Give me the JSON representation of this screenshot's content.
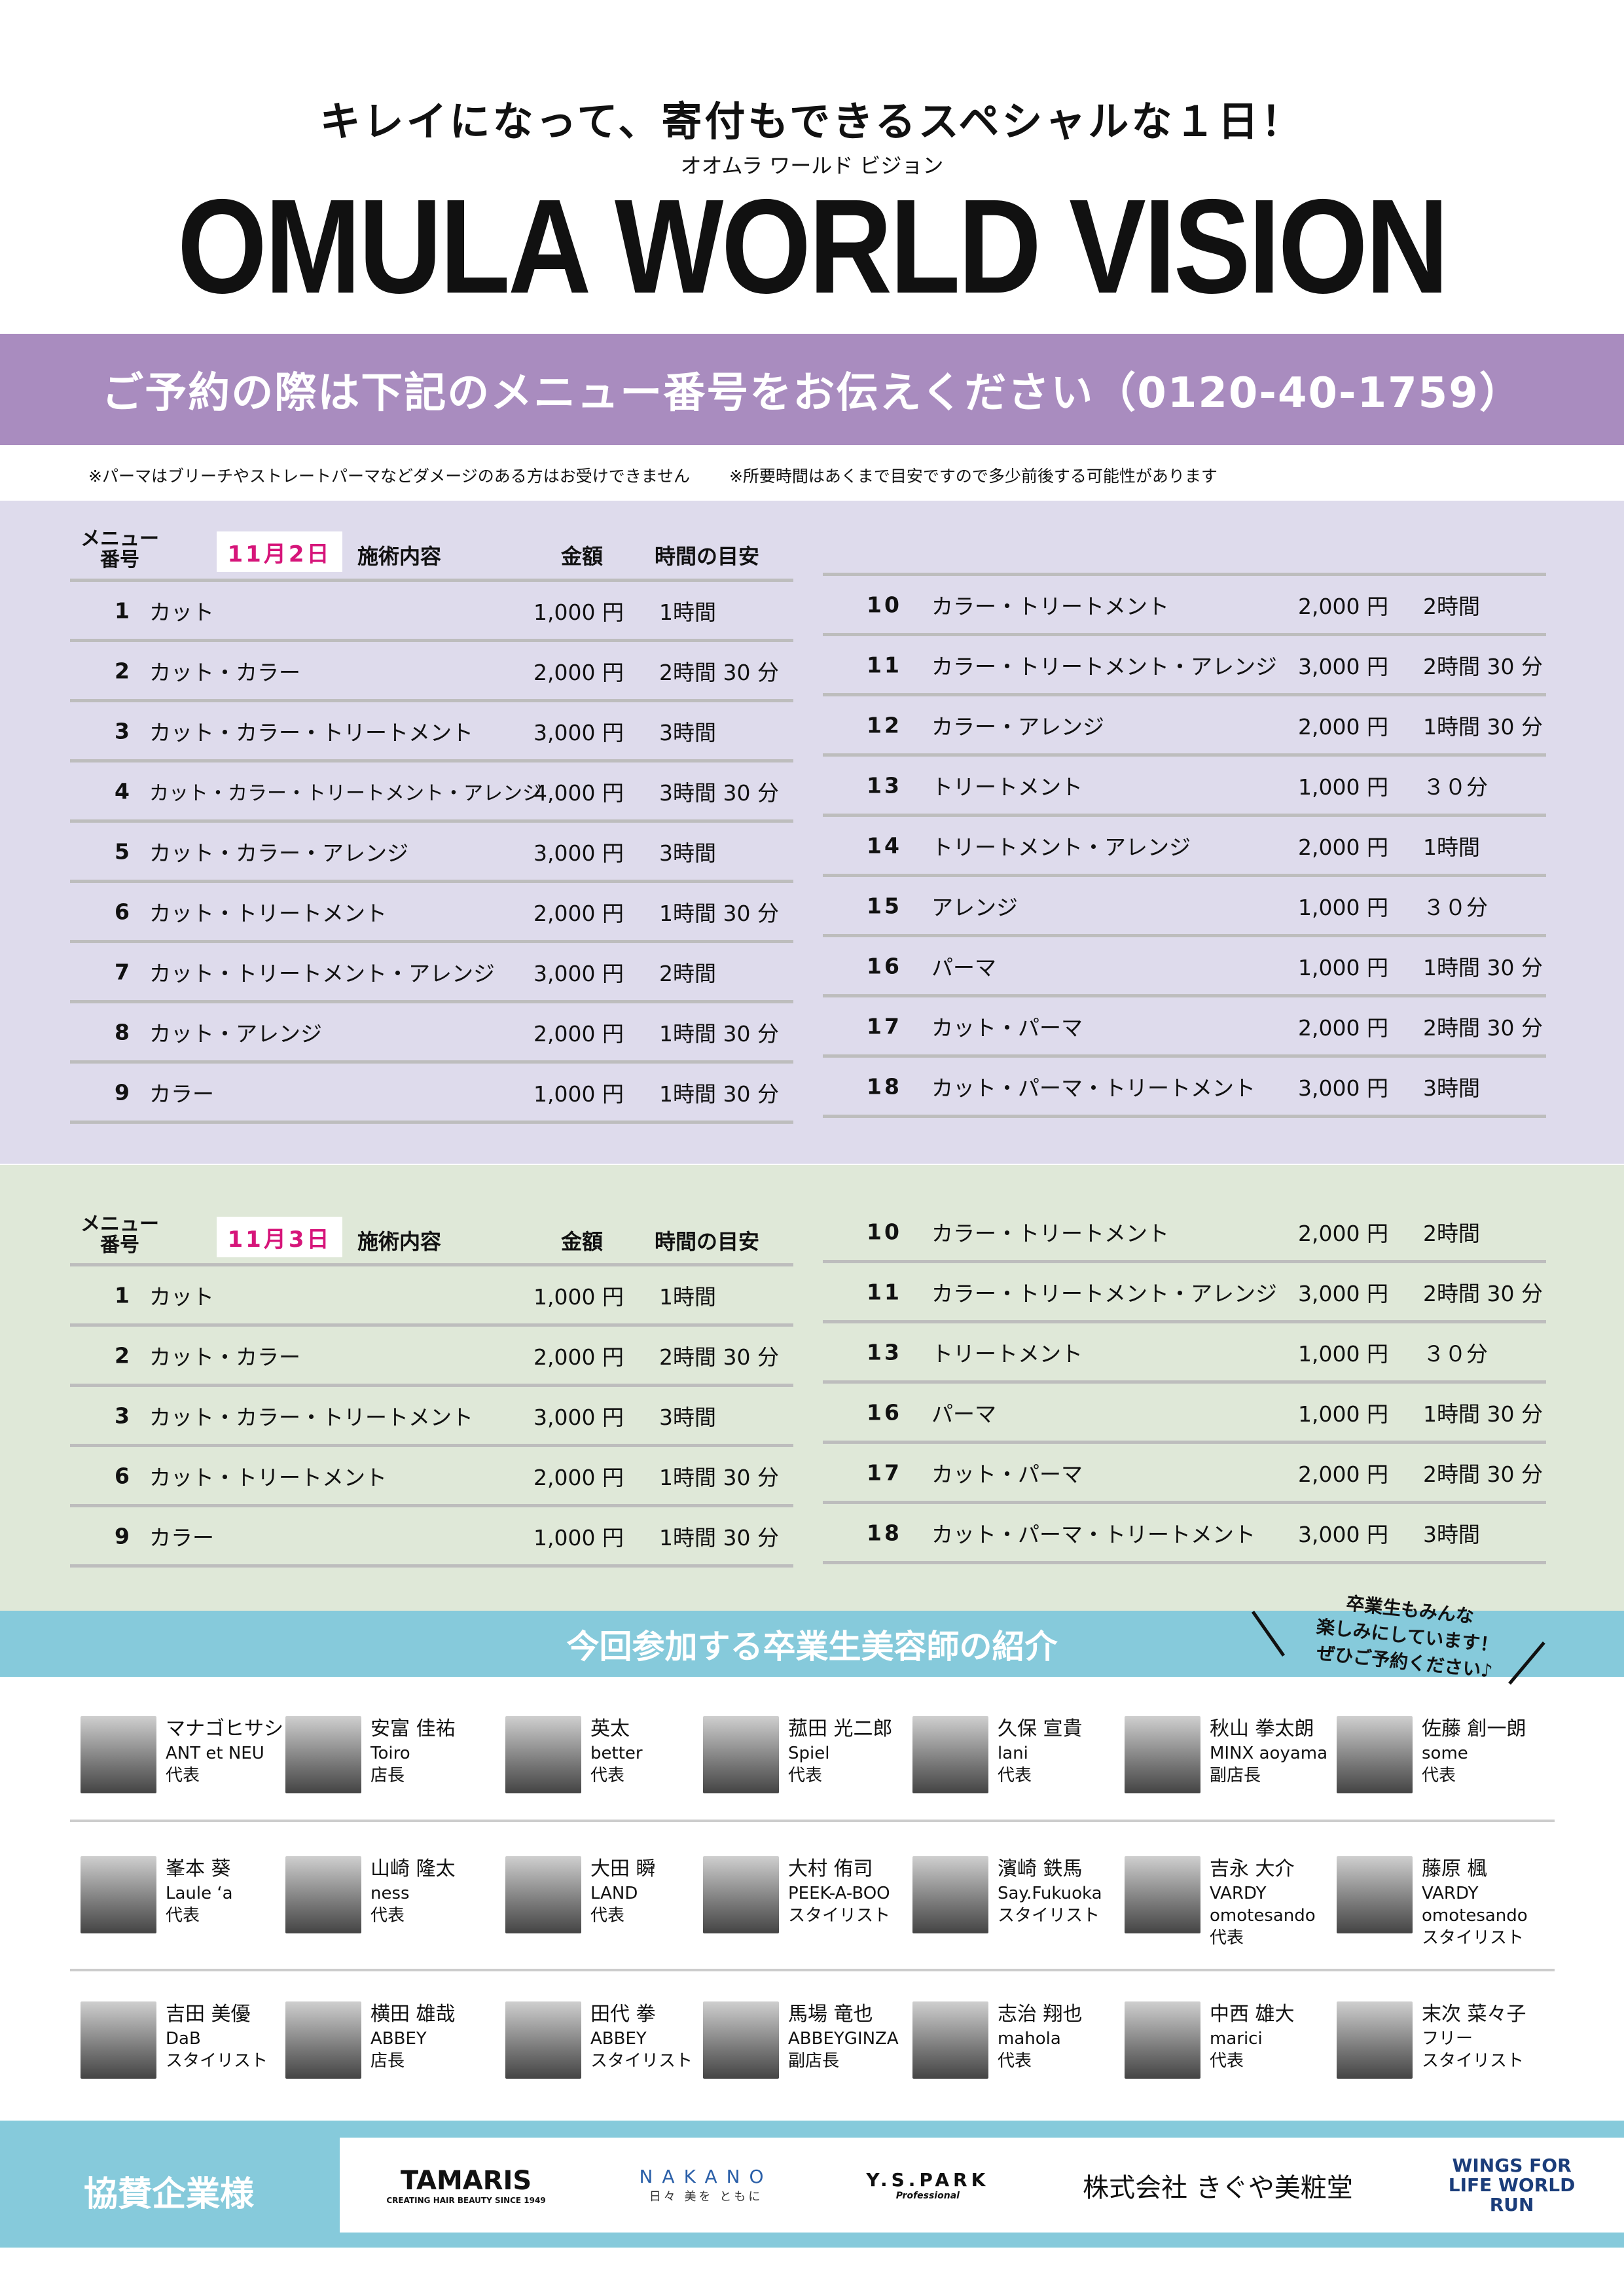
{
  "header": {
    "headline": "キレイになって、寄付もできるスペシャルな１日！",
    "kana": "オオムラ ワールド ビジョン",
    "title": "OMULA WORLD VISION"
  },
  "booking": {
    "text": "ご予約の際は下記のメニュー番号をお伝えください（0120-40-1759）"
  },
  "notes": [
    "※パーマはブリーチやストレートパーマなどダメージのある方はお受けできません",
    "※所要時間はあくまで目安ですので多少前後する可能性があります"
  ],
  "columns": {
    "menu_no": "メニュー",
    "menu_no2": "番号",
    "treatment": "施術内容",
    "price": "金額",
    "time": "時間の目安"
  },
  "colors": {
    "purple": "#a98cbf",
    "lavender": "#dedbec",
    "green": "#dfe8d8",
    "blue": "#86cadb",
    "pink": "#d6157a"
  },
  "day1": {
    "date": "11月2日",
    "left": [
      [
        "1",
        "カット",
        "1,000 円",
        "1時間"
      ],
      [
        "2",
        "カット・カラー",
        "2,000 円",
        "2時間 30 分"
      ],
      [
        "3",
        "カット・カラー・トリートメント",
        "3,000 円",
        "3時間"
      ],
      [
        "4",
        "カット・カラー・トリートメント・アレンジ",
        "4,000 円",
        "3時間 30 分"
      ],
      [
        "5",
        "カット・カラー・アレンジ",
        "3,000 円",
        "3時間"
      ],
      [
        "6",
        "カット・トリートメント",
        "2,000 円",
        "1時間 30 分"
      ],
      [
        "7",
        "カット・トリートメント・アレンジ",
        "3,000 円",
        "2時間"
      ],
      [
        "8",
        "カット・アレンジ",
        "2,000 円",
        "1時間 30 分"
      ],
      [
        "9",
        "カラー",
        "1,000 円",
        "1時間 30 分"
      ]
    ],
    "right": [
      [
        "10",
        "カラー・トリートメント",
        "2,000 円",
        "2時間"
      ],
      [
        "11",
        "カラー・トリートメント・アレンジ",
        "3,000 円",
        "2時間 30 分"
      ],
      [
        "12",
        "カラー・アレンジ",
        "2,000 円",
        "1時間 30 分"
      ],
      [
        "13",
        "トリートメント",
        "1,000 円",
        "３０分"
      ],
      [
        "14",
        "トリートメント・アレンジ",
        "2,000 円",
        "1時間"
      ],
      [
        "15",
        "アレンジ",
        "1,000 円",
        "３０分"
      ],
      [
        "16",
        "パーマ",
        "1,000 円",
        "1時間 30 分"
      ],
      [
        "17",
        "カット・パーマ",
        "2,000 円",
        "2時間 30 分"
      ],
      [
        "18",
        "カット・パーマ・トリートメント",
        "3,000 円",
        "3時間"
      ]
    ]
  },
  "day2": {
    "date": "11月3日",
    "left": [
      [
        "1",
        "カット",
        "1,000 円",
        "1時間"
      ],
      [
        "2",
        "カット・カラー",
        "2,000 円",
        "2時間 30 分"
      ],
      [
        "3",
        "カット・カラー・トリートメント",
        "3,000 円",
        "3時間"
      ],
      [
        "6",
        "カット・トリートメント",
        "2,000 円",
        "1時間 30 分"
      ],
      [
        "9",
        "カラー",
        "1,000 円",
        "1時間 30 分"
      ]
    ],
    "right": [
      [
        "10",
        "カラー・トリートメント",
        "2,000 円",
        "2時間"
      ],
      [
        "11",
        "カラー・トリートメント・アレンジ",
        "3,000 円",
        "2時間 30 分"
      ],
      [
        "13",
        "トリートメント",
        "1,000 円",
        "３０分"
      ],
      [
        "16",
        "パーマ",
        "1,000 円",
        "1時間 30 分"
      ],
      [
        "17",
        "カット・パーマ",
        "2,000 円",
        "2時間 30 分"
      ],
      [
        "18",
        "カット・パーマ・トリートメント",
        "3,000 円",
        "3時間"
      ]
    ]
  },
  "staff_section": {
    "title": "今回参加する卒業生美容師の紹介",
    "callout": [
      "卒業生もみんな",
      "楽しみにしています！",
      "ぜひご予約ください♪"
    ]
  },
  "staff": [
    [
      [
        "マナゴヒサシ",
        "ANT et NEU",
        "代表"
      ],
      [
        "安富 佳祐",
        "Toiro",
        "店長"
      ],
      [
        "英太",
        "better",
        "代表"
      ],
      [
        "菰田 光二郎",
        "Spiel",
        "代表"
      ],
      [
        "久保 宣貴",
        "lani",
        "代表"
      ],
      [
        "秋山 拳太朗",
        "MINX aoyama",
        "副店長"
      ],
      [
        "佐藤 創一朗",
        "some",
        "代表"
      ]
    ],
    [
      [
        "峯本 葵",
        "Laule ‘a",
        "代表"
      ],
      [
        "山崎 隆太",
        "ness",
        "代表"
      ],
      [
        "大田 瞬",
        "LAND",
        "代表"
      ],
      [
        "大村 侑司",
        "PEEK-A-BOO",
        "スタイリスト"
      ],
      [
        "濱崎 鉄馬",
        "Say.Fukuoka",
        "スタイリスト"
      ],
      [
        "吉永 大介",
        "VARDY omotesando",
        "代表"
      ],
      [
        "藤原 楓",
        "VARDY omotesando",
        "スタイリスト"
      ]
    ],
    [
      [
        "吉田 美優",
        "DaB",
        "スタイリスト"
      ],
      [
        "横田 雄哉",
        "ABBEY",
        "店長"
      ],
      [
        "田代 拳",
        "ABBEY",
        "スタイリスト"
      ],
      [
        "馬場 竜也",
        "ABBEYGINZA",
        "副店長"
      ],
      [
        "志治 翔也",
        "mahola",
        "代表"
      ],
      [
        "中西 雄大",
        "marici",
        "代表"
      ],
      [
        "末次 菜々子",
        "フリー",
        "スタイリスト"
      ]
    ]
  ],
  "sponsors": {
    "label": "協賛企業様",
    "logos": [
      "TAMARIS",
      "NAKANO",
      "Y.S.PARK",
      "株式会社 きぐや美粧堂",
      "WINGS FOR LIFE WORLD RUN"
    ],
    "logo_subs": [
      "CREATING HAIR BEAUTY SINCE 1949",
      "日々 美を ともに",
      "Professional",
      "",
      ""
    ]
  }
}
